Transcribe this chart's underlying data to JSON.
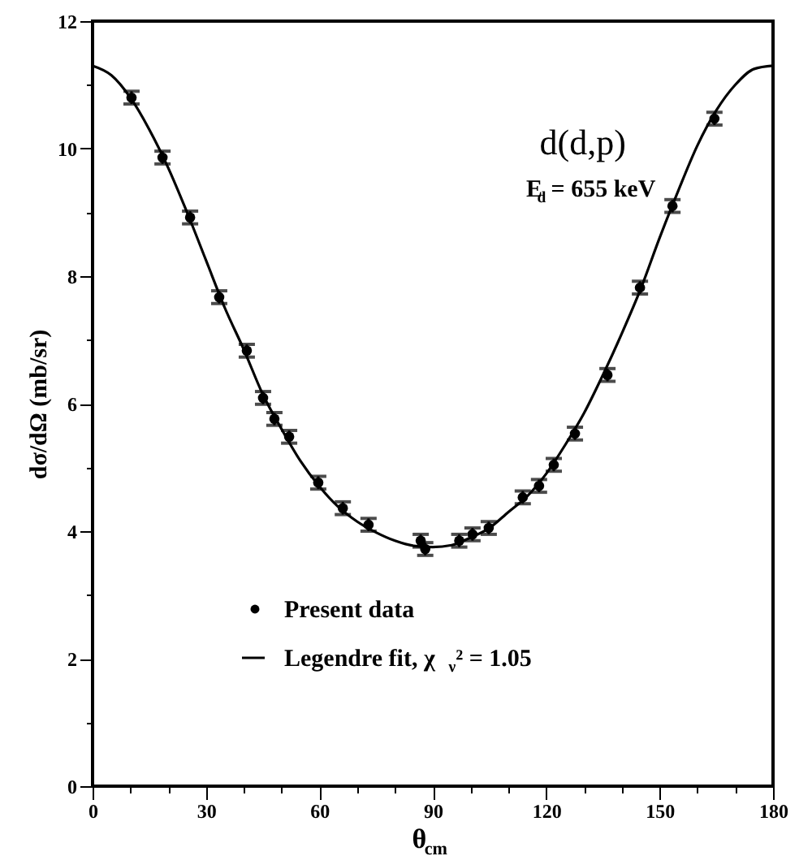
{
  "chart_data": {
    "type": "scatter",
    "title": "d(d,p)",
    "subtitle": "E$_{d}$ = 655 keV",
    "xlabel": "θ$_{cm}$",
    "ylabel": "dσ/dΩ (mb/sr)",
    "xlim": [
      0,
      180
    ],
    "ylim": [
      0,
      12
    ],
    "xticks": [
      0,
      {
        "value": 10,
        "label": null
      },
      {
        "value": 20,
        "label": null
      },
      30,
      {
        "value": 40,
        "label": null
      },
      {
        "value": 50,
        "label": null
      },
      60,
      {
        "value": 70,
        "label": null
      },
      {
        "value": 80,
        "label": null
      },
      90,
      {
        "value": 100,
        "label": null
      },
      {
        "value": 110,
        "label": null
      },
      120,
      {
        "value": 130,
        "label": null
      },
      {
        "value": 140,
        "label": null
      },
      150,
      {
        "value": 160,
        "label": null
      },
      {
        "value": 170,
        "label": null
      },
      180
    ],
    "yticks": [
      0,
      {
        "value": 1,
        "label": null
      },
      2,
      {
        "value": 3,
        "label": null
      },
      4,
      {
        "value": 5,
        "label": null
      },
      6,
      {
        "value": 7,
        "label": null
      },
      8,
      {
        "value": 9,
        "label": null
      },
      10,
      {
        "value": 11,
        "label": null
      },
      12
    ],
    "grid": false,
    "legend": "bottom left",
    "series": [
      {
        "name": "Present data",
        "marker": "circle",
        "color": "#000000",
        "x": [
          10.3,
          18.5,
          25.8,
          33.5,
          40.8,
          45.1,
          48.1,
          52.0,
          59.7,
          66.2,
          73.0,
          86.8,
          88.0,
          97.0,
          100.5,
          104.8,
          113.8,
          118.1,
          122.0,
          127.6,
          136.2,
          144.8,
          153.4,
          164.5
        ],
        "values": [
          10.8,
          9.86,
          8.92,
          7.67,
          6.83,
          6.09,
          5.76,
          5.48,
          4.76,
          4.36,
          4.1,
          3.85,
          3.72,
          3.85,
          3.95,
          4.05,
          4.53,
          4.71,
          5.04,
          5.53,
          6.45,
          7.82,
          9.1,
          10.47
        ],
        "errors": [
          0.1,
          0.1,
          0.1,
          0.1,
          0.1,
          0.1,
          0.1,
          0.1,
          0.1,
          0.1,
          0.1,
          0.1,
          0.1,
          0.1,
          0.1,
          0.1,
          0.1,
          0.1,
          0.1,
          0.1,
          0.1,
          0.1,
          0.1,
          0.1
        ]
      },
      {
        "name": "Legendre fit, χ$_{ν}$² = 1.05",
        "type": "line",
        "line_style": "solid",
        "color": "#000000",
        "x": [
          0,
          5,
          10,
          15,
          20,
          25,
          30,
          35,
          40,
          45,
          50,
          55,
          60,
          65,
          70,
          75,
          80,
          85,
          90,
          95,
          100,
          105,
          110,
          115,
          120,
          125,
          130,
          135,
          140,
          145,
          150,
          155,
          160,
          165,
          170,
          175,
          180
        ],
        "values": [
          11.3,
          11.15,
          10.8,
          10.3,
          9.7,
          9.0,
          8.25,
          7.5,
          6.85,
          6.15,
          5.6,
          5.1,
          4.7,
          4.38,
          4.15,
          3.98,
          3.85,
          3.77,
          3.75,
          3.78,
          3.9,
          4.05,
          4.3,
          4.55,
          4.9,
          5.35,
          5.85,
          6.45,
          7.1,
          7.8,
          8.6,
          9.35,
          10.05,
          10.6,
          11.0,
          11.25,
          11.3
        ]
      }
    ]
  }
}
